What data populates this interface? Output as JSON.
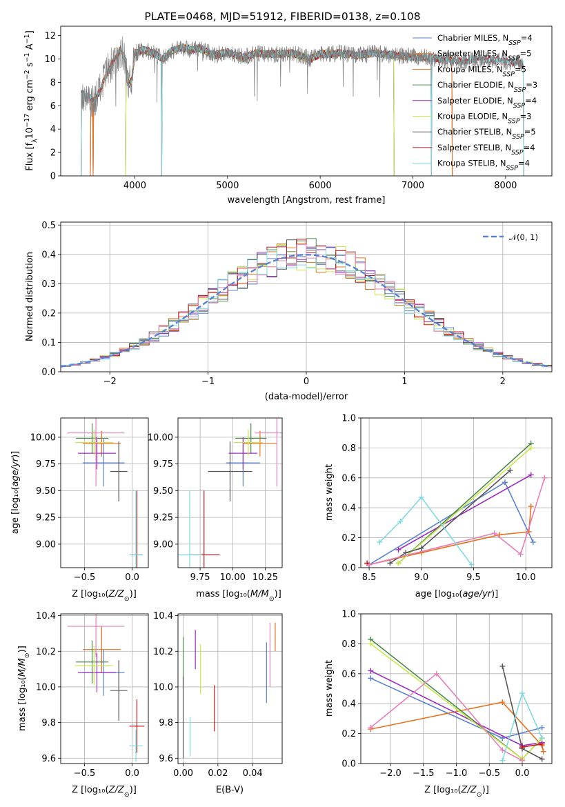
{
  "figure_title": "PLATE=0468, MJD=51912, FIBERID=0138, z=0.108",
  "colors": [
    "#5b82d2",
    "#e8711d",
    "#4c8a4c",
    "#9a2fbf",
    "#c8e84a",
    "#555555",
    "#c0181f",
    "#e67fb9",
    "#7fd9e0"
  ],
  "chart_data": [
    {
      "id": "spectrum",
      "type": "line",
      "title": "PLATE=0468, MJD=51912, FIBERID=0138, z=0.108",
      "xlabel": "wavelength [Angstrom, rest frame]",
      "ylabel": "Flux [f_λ 10^-17 erg cm^-2 s^-1 A^-1]",
      "xlim": [
        3200,
        8500
      ],
      "ylim": [
        0,
        12.8
      ],
      "xticks": [
        4000,
        5000,
        6000,
        7000,
        8000
      ],
      "yticks": [
        0,
        2,
        4,
        6,
        8,
        10,
        12
      ],
      "legend_position": "upper right",
      "grid": false,
      "data_color": "#808080",
      "data_line": [
        [
          3420,
          7.0
        ],
        [
          3500,
          6.8
        ],
        [
          3560,
          6.3
        ],
        [
          3620,
          7.2
        ],
        [
          3700,
          8.8
        ],
        [
          3800,
          10.2
        ],
        [
          3850,
          10.9
        ],
        [
          3900,
          9.6
        ],
        [
          3934,
          7.8
        ],
        [
          3968,
          8.2
        ],
        [
          4000,
          10.5
        ],
        [
          4100,
          10.8
        ],
        [
          4200,
          10.5
        ],
        [
          4300,
          10.0
        ],
        [
          4400,
          10.7
        ],
        [
          4500,
          11.0
        ],
        [
          4600,
          10.8
        ],
        [
          4700,
          10.9
        ],
        [
          4861,
          10.3
        ],
        [
          5000,
          10.6
        ],
        [
          5175,
          10.1
        ],
        [
          5300,
          10.5
        ],
        [
          5500,
          10.4
        ],
        [
          5700,
          10.5
        ],
        [
          5890,
          10.0
        ],
        [
          6000,
          10.4
        ],
        [
          6200,
          10.5
        ],
        [
          6400,
          10.3
        ],
        [
          6563,
          10.5
        ],
        [
          6800,
          10.3
        ],
        [
          7000,
          10.2
        ],
        [
          7200,
          10.1
        ],
        [
          7500,
          9.8
        ],
        [
          7700,
          10.0
        ],
        [
          8000,
          9.8
        ],
        [
          8200,
          9.6
        ]
      ],
      "series": [
        {
          "name": "Chabrier MILES, N_SSP=4",
          "color": "#5b82d2",
          "range": [
            3520,
            7430
          ],
          "drop": [
            3520,
            3550,
            7430
          ]
        },
        {
          "name": "Salpeter MILES, N_SSP=5",
          "color": "#e8711d",
          "range": [
            3520,
            7430
          ],
          "drop": [
            3520,
            3550,
            7430
          ]
        },
        {
          "name": "Kroupa MILES, N_SSP=5",
          "color": "#e8711d",
          "range": [
            3520,
            7430
          ],
          "drop": [
            3520,
            3550,
            7430
          ]
        },
        {
          "name": "Chabrier ELODIE, N_SSP=3",
          "color": "#4c8a4c",
          "range": [
            3900,
            6800
          ],
          "drop": [
            3900,
            6800
          ]
        },
        {
          "name": "Salpeter ELODIE, N_SSP=4",
          "color": "#9a2fbf",
          "range": [
            3900,
            6800
          ],
          "drop": [
            3900,
            6800
          ]
        },
        {
          "name": "Kroupa ELODIE, N_SSP=3",
          "color": "#c8e84a",
          "range": [
            3900,
            6800
          ],
          "drop": [
            3900,
            6800
          ]
        },
        {
          "name": "Chabrier STELIB, N_SSP=5",
          "color": "#555555",
          "range": [
            3420,
            8200
          ],
          "drop": [
            4290,
            7200
          ]
        },
        {
          "name": "Salpeter STELIB, N_SSP=4",
          "color": "#c0181f",
          "range": [
            3420,
            8200
          ],
          "drop": [
            4290,
            7200
          ]
        },
        {
          "name": "Kroupa STELIB, N_SSP=4",
          "color": "#7fd9e0",
          "range": [
            3420,
            8200
          ],
          "drop": [
            4290,
            7200
          ]
        }
      ]
    },
    {
      "id": "residuals",
      "type": "histogram",
      "xlabel": "(data-model)/error",
      "ylabel": "Normed distribution",
      "xlim": [
        -2.5,
        2.5
      ],
      "ylim": [
        0,
        0.51
      ],
      "xticks": [
        -2,
        -1,
        0,
        1,
        2
      ],
      "yticks": [
        0.0,
        0.1,
        0.2,
        0.3,
        0.4,
        0.5
      ],
      "grid": true,
      "bin_width": 0.1,
      "reference": {
        "name": "𝒩(0, 1)",
        "color": "#5b82d2",
        "style": "dashed",
        "mean": 0,
        "sigma": 1
      },
      "legend_position": "upper right"
    },
    {
      "id": "age-vs-Z",
      "type": "errorbar",
      "xlabel": "Z [log10(Z/Z⊙)]",
      "ylabel": "age [log10(age/yr)]",
      "xlim": [
        -0.75,
        0.17
      ],
      "ylim": [
        8.78,
        10.18
      ],
      "xticks": [
        -0.5,
        0.0
      ],
      "yticks": [
        9.0,
        9.25,
        9.5,
        9.75,
        10.0
      ],
      "grid": true,
      "points": [
        {
          "x": -0.3,
          "xerr": 0.22,
          "y": 9.76,
          "yerr": 0.22,
          "color": "#5b82d2"
        },
        {
          "x": -0.32,
          "xerr": 0.2,
          "y": 9.94,
          "yerr": 0.12,
          "color": "#e8711d"
        },
        {
          "x": -0.42,
          "xerr": 0.17,
          "y": 9.99,
          "yerr": 0.14,
          "color": "#4c8a4c"
        },
        {
          "x": -0.37,
          "xerr": 0.2,
          "y": 9.85,
          "yerr": 0.15,
          "color": "#9a2fbf"
        },
        {
          "x": -0.4,
          "xerr": 0.2,
          "y": 9.95,
          "yerr": 0.12,
          "color": "#c8e84a"
        },
        {
          "x": -0.14,
          "xerr": 0.09,
          "y": 9.68,
          "yerr": 0.28,
          "color": "#555555"
        },
        {
          "x": 0.05,
          "xerr": 0.06,
          "y": 8.9,
          "yerr": 0.6,
          "color": "#c0181f"
        },
        {
          "x": -0.38,
          "xerr": 0.3,
          "y": 10.04,
          "yerr": 0.5,
          "color": "#e67fb9"
        },
        {
          "x": 0.04,
          "xerr": 0.07,
          "y": 8.9,
          "yerr": 0.6,
          "color": "#7fd9e0"
        }
      ]
    },
    {
      "id": "age-vs-mass",
      "type": "errorbar",
      "xlabel": "mass [log10(M/M⊙)]",
      "ylabel": "",
      "xlim": [
        9.58,
        10.38
      ],
      "ylim": [
        8.78,
        10.18
      ],
      "xticks": [
        9.75,
        10.0,
        10.25
      ],
      "yticks": [
        9.0,
        9.25,
        9.5,
        9.75,
        10.0
      ],
      "grid": true,
      "points": [
        {
          "x": 10.08,
          "xerr": 0.13,
          "y": 9.76,
          "yerr": 0.22,
          "color": "#5b82d2"
        },
        {
          "x": 10.21,
          "xerr": 0.13,
          "y": 9.94,
          "yerr": 0.12,
          "color": "#e8711d"
        },
        {
          "x": 10.14,
          "xerr": 0.12,
          "y": 9.99,
          "yerr": 0.14,
          "color": "#4c8a4c"
        },
        {
          "x": 10.08,
          "xerr": 0.11,
          "y": 9.85,
          "yerr": 0.15,
          "color": "#9a2fbf"
        },
        {
          "x": 10.12,
          "xerr": 0.11,
          "y": 9.95,
          "yerr": 0.12,
          "color": "#c8e84a"
        },
        {
          "x": 9.98,
          "xerr": 0.17,
          "y": 9.68,
          "yerr": 0.28,
          "color": "#555555"
        },
        {
          "x": 9.78,
          "xerr": 0.12,
          "y": 8.9,
          "yerr": 0.6,
          "color": "#c0181f"
        },
        {
          "x": 10.34,
          "xerr": 0.17,
          "y": 10.04,
          "yerr": 0.5,
          "color": "#e67fb9"
        },
        {
          "x": 9.67,
          "xerr": 0.09,
          "y": 8.9,
          "yerr": 0.6,
          "color": "#7fd9e0"
        }
      ]
    },
    {
      "id": "weight-vs-age",
      "type": "line",
      "xlabel": "age [log10(age/yr)]",
      "ylabel": "mass weight",
      "xlim": [
        8.42,
        10.25
      ],
      "ylim": [
        0,
        1.0
      ],
      "xticks": [
        8.5,
        9.0,
        9.5,
        10.0
      ],
      "yticks": [
        0.0,
        0.2,
        0.4,
        0.6,
        0.8,
        1.0
      ],
      "grid": true,
      "series": [
        {
          "color": "#5b82d2",
          "x": [
            8.5,
            9.8,
            10.07
          ],
          "y": [
            0.02,
            0.57,
            0.17
          ]
        },
        {
          "color": "#e8711d",
          "x": [
            8.5,
            9.0,
            9.75,
            10.03,
            10.05
          ],
          "y": [
            0.02,
            0.1,
            0.22,
            0.24,
            0.41
          ]
        },
        {
          "color": "#4c8a4c",
          "x": [
            8.78,
            10.05
          ],
          "y": [
            0.03,
            0.83
          ]
        },
        {
          "color": "#9a2fbf",
          "x": [
            8.78,
            10.05
          ],
          "y": [
            0.12,
            0.62
          ]
        },
        {
          "color": "#c8e84a",
          "x": [
            8.78,
            10.05
          ],
          "y": [
            0.03,
            0.8
          ]
        },
        {
          "color": "#555555",
          "x": [
            8.7,
            8.85,
            9.0,
            9.85
          ],
          "y": [
            0.03,
            0.1,
            0.13,
            0.65
          ]
        },
        {
          "color": "#c0181f",
          "x": [
            8.48,
            8.5
          ],
          "y": [
            0.03,
            0.02
          ]
        },
        {
          "color": "#e67fb9",
          "x": [
            8.5,
            9.7,
            9.95,
            10.18
          ],
          "y": [
            0.02,
            0.23,
            0.09,
            0.6
          ]
        },
        {
          "color": "#7fd9e0",
          "x": [
            8.6,
            8.8,
            9.0,
            9.48
          ],
          "y": [
            0.17,
            0.31,
            0.47,
            0.02
          ]
        }
      ]
    },
    {
      "id": "mass-vs-Z",
      "type": "errorbar",
      "xlabel": "Z [log10(Z/Z⊙)]",
      "ylabel": "mass [log10(M/M⊙)]",
      "xlim": [
        -0.75,
        0.17
      ],
      "ylim": [
        9.57,
        10.41
      ],
      "xticks": [
        -0.5,
        0.0
      ],
      "yticks": [
        9.6,
        9.8,
        10.0,
        10.2,
        10.4
      ],
      "grid": true,
      "points": [
        {
          "x": -0.3,
          "xerr": 0.22,
          "y": 10.08,
          "yerr": 0.13,
          "color": "#5b82d2"
        },
        {
          "x": -0.32,
          "xerr": 0.2,
          "y": 10.21,
          "yerr": 0.13,
          "color": "#e8711d"
        },
        {
          "x": -0.42,
          "xerr": 0.17,
          "y": 10.14,
          "yerr": 0.12,
          "color": "#4c8a4c"
        },
        {
          "x": -0.37,
          "xerr": 0.2,
          "y": 10.08,
          "yerr": 0.11,
          "color": "#9a2fbf"
        },
        {
          "x": -0.4,
          "xerr": 0.2,
          "y": 10.12,
          "yerr": 0.11,
          "color": "#c8e84a"
        },
        {
          "x": -0.14,
          "xerr": 0.09,
          "y": 9.98,
          "yerr": 0.17,
          "color": "#555555"
        },
        {
          "x": 0.05,
          "xerr": 0.08,
          "y": 9.78,
          "yerr": 0.15,
          "color": "#c0181f"
        },
        {
          "x": -0.38,
          "xerr": 0.3,
          "y": 10.34,
          "yerr": 0.17,
          "color": "#e67fb9"
        },
        {
          "x": 0.04,
          "xerr": 0.07,
          "y": 9.67,
          "yerr": 0.09,
          "color": "#7fd9e0"
        }
      ]
    },
    {
      "id": "mass-vs-EBV",
      "type": "errorbar",
      "xlabel": "E(B-V)",
      "ylabel": "",
      "xlim": [
        -0.003,
        0.057
      ],
      "ylim": [
        9.57,
        10.41
      ],
      "xticks": [
        0.0,
        0.02,
        0.04
      ],
      "yticks": [
        9.6,
        9.8,
        10.0,
        10.2,
        10.4
      ],
      "grid": true,
      "points": [
        {
          "x": 0.048,
          "xerr": 0,
          "y": 10.08,
          "yerr": 0.17,
          "color": "#5b82d2"
        },
        {
          "x": 0.053,
          "xerr": 0,
          "y": 10.28,
          "yerr": 0.08,
          "color": "#e8711d"
        },
        {
          "x": 0.0,
          "xerr": 0,
          "y": 10.14,
          "yerr": 0.14,
          "color": "#4c8a4c"
        },
        {
          "x": 0.007,
          "xerr": 0,
          "y": 10.21,
          "yerr": 0.11,
          "color": "#9a2fbf"
        },
        {
          "x": 0.01,
          "xerr": 0,
          "y": 10.1,
          "yerr": 0.14,
          "color": "#c8e84a"
        },
        {
          "x": 0.0,
          "xerr": 0,
          "y": 9.83,
          "yerr": 0.23,
          "color": "#555555"
        },
        {
          "x": 0.018,
          "xerr": 0,
          "y": 9.88,
          "yerr": 0.13,
          "color": "#c0181f"
        },
        {
          "x": 0.05,
          "xerr": 0,
          "y": 10.18,
          "yerr": 0.18,
          "color": "#e67fb9"
        },
        {
          "x": 0.004,
          "xerr": 0,
          "y": 9.72,
          "yerr": 0.11,
          "color": "#7fd9e0"
        }
      ]
    },
    {
      "id": "weight-vs-Z",
      "type": "line",
      "xlabel": "Z [log10(Z/Z⊙)]",
      "ylabel": "mass weight",
      "xlim": [
        -2.45,
        0.45
      ],
      "ylim": [
        0,
        1.0
      ],
      "xticks": [
        -2.0,
        -1.5,
        -1.0,
        -0.5,
        0.0
      ],
      "yticks": [
        0.0,
        0.2,
        0.4,
        0.6,
        0.8,
        1.0
      ],
      "grid": true,
      "series": [
        {
          "color": "#5b82d2",
          "x": [
            -2.3,
            -0.3,
            0.3
          ],
          "y": [
            0.57,
            0.17,
            0.24
          ]
        },
        {
          "color": "#e8711d",
          "x": [
            -2.3,
            -0.3,
            0.3,
            0.32
          ],
          "y": [
            0.23,
            0.41,
            0.12,
            0.08
          ]
        },
        {
          "color": "#4c8a4c",
          "x": [
            -2.3,
            0.0,
            0.3
          ],
          "y": [
            0.83,
            0.03,
            0.17
          ]
        },
        {
          "color": "#9a2fbf",
          "x": [
            -2.3,
            0.0,
            0.3
          ],
          "y": [
            0.62,
            0.12,
            0.14
          ]
        },
        {
          "color": "#c8e84a",
          "x": [
            -2.3,
            0.0,
            0.3
          ],
          "y": [
            0.8,
            0.03,
            0.17
          ]
        },
        {
          "color": "#555555",
          "x": [
            -0.3,
            0.0,
            0.3
          ],
          "y": [
            0.65,
            0.1,
            0.03
          ]
        },
        {
          "color": "#c0181f",
          "x": [
            0.0,
            0.3
          ],
          "y": [
            0.11,
            0.13
          ]
        },
        {
          "color": "#e67fb9",
          "x": [
            -2.3,
            -1.3,
            -0.3,
            0.0
          ],
          "y": [
            0.24,
            0.6,
            0.09,
            0.02
          ]
        },
        {
          "color": "#7fd9e0",
          "x": [
            -0.3,
            0.0,
            0.3
          ],
          "y": [
            0.02,
            0.47,
            0.17
          ]
        }
      ]
    }
  ]
}
